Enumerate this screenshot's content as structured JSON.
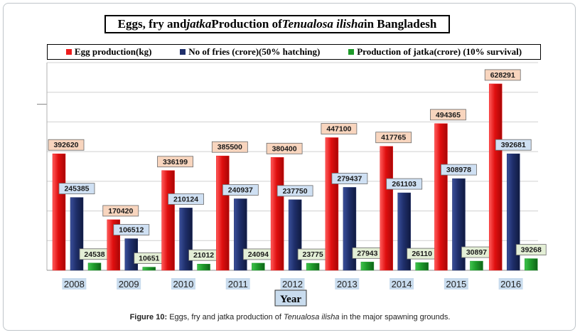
{
  "header": {
    "title_prefix": "Eggs, fry and ",
    "title_italic1": "jatka",
    "title_mid": " Production of ",
    "title_italic2": "Tenualosa ilisha",
    "title_suffix": " in Bangladesh"
  },
  "caption": {
    "label": "Figure 10:",
    "text_before": " Eggs, fry and jatka production of ",
    "text_italic": "Tenualosa ilisha",
    "text_after": " in the major spawning grounds."
  },
  "colors": {
    "eggs": "#ee1c1c",
    "fries": "#1f2f6b",
    "jatka": "#1e9a2a",
    "label_eggs_bg": "#f8d5be",
    "label_fries_bg": "#cfe0f3",
    "label_jatka_bg": "#e4efd6",
    "year_bg": "#c9dcee"
  },
  "chart_data": {
    "type": "bar",
    "title": "Eggs, fry and jatka Production of Tenualosa ilisha in Bangladesh",
    "xlabel": "Year",
    "ylabel": "",
    "categories": [
      "2008",
      "2009",
      "2010",
      "2011",
      "2012",
      "2013",
      "2014",
      "2015",
      "2016"
    ],
    "series": [
      {
        "name": "Egg production(kg)",
        "values": [
          392620,
          170420,
          336199,
          385500,
          380400,
          447100,
          417765,
          494365,
          628291
        ]
      },
      {
        "name": "No of fries (crore)(50% hatching)",
        "values": [
          245385,
          106512,
          210124,
          240937,
          237750,
          279437,
          261103,
          308978,
          392681
        ]
      },
      {
        "name": "Production of jatka(crore) (10% survival)",
        "values": [
          24538,
          10651,
          21012,
          24094,
          23775,
          27943,
          26110,
          30897,
          39268
        ]
      }
    ],
    "ylim": [
      0,
      700000
    ],
    "grid": true,
    "legend": "top"
  }
}
